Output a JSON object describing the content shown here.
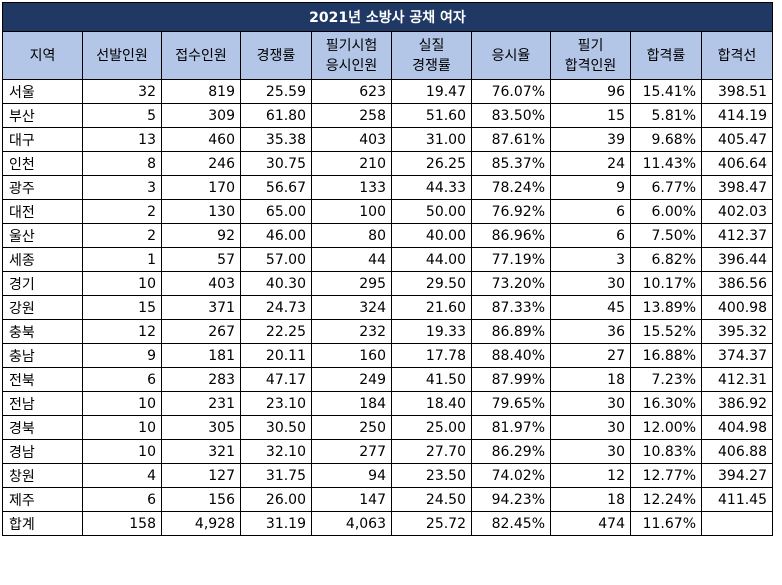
{
  "title": "2021년 소방사 공채 여자",
  "headers": [
    [
      "지역"
    ],
    [
      "선발인원"
    ],
    [
      "접수인원"
    ],
    [
      "경쟁률"
    ],
    [
      "필기시험",
      "응시인원"
    ],
    [
      "실질",
      "경쟁률"
    ],
    [
      "응시율"
    ],
    [
      "필기",
      "합격인원"
    ],
    [
      "합격률"
    ],
    [
      "합격선"
    ]
  ],
  "rows": [
    [
      "서울",
      "32",
      "819",
      "25.59",
      "623",
      "19.47",
      "76.07%",
      "96",
      "15.41%",
      "398.51"
    ],
    [
      "부산",
      "5",
      "309",
      "61.80",
      "258",
      "51.60",
      "83.50%",
      "15",
      "5.81%",
      "414.19"
    ],
    [
      "대구",
      "13",
      "460",
      "35.38",
      "403",
      "31.00",
      "87.61%",
      "39",
      "9.68%",
      "405.47"
    ],
    [
      "인천",
      "8",
      "246",
      "30.75",
      "210",
      "26.25",
      "85.37%",
      "24",
      "11.43%",
      "406.64"
    ],
    [
      "광주",
      "3",
      "170",
      "56.67",
      "133",
      "44.33",
      "78.24%",
      "9",
      "6.77%",
      "398.47"
    ],
    [
      "대전",
      "2",
      "130",
      "65.00",
      "100",
      "50.00",
      "76.92%",
      "6",
      "6.00%",
      "402.03"
    ],
    [
      "울산",
      "2",
      "92",
      "46.00",
      "80",
      "40.00",
      "86.96%",
      "6",
      "7.50%",
      "412.37"
    ],
    [
      "세종",
      "1",
      "57",
      "57.00",
      "44",
      "44.00",
      "77.19%",
      "3",
      "6.82%",
      "396.44"
    ],
    [
      "경기",
      "10",
      "403",
      "40.30",
      "295",
      "29.50",
      "73.20%",
      "30",
      "10.17%",
      "386.56"
    ],
    [
      "강원",
      "15",
      "371",
      "24.73",
      "324",
      "21.60",
      "87.33%",
      "45",
      "13.89%",
      "400.98"
    ],
    [
      "충북",
      "12",
      "267",
      "22.25",
      "232",
      "19.33",
      "86.89%",
      "36",
      "15.52%",
      "395.32"
    ],
    [
      "충남",
      "9",
      "181",
      "20.11",
      "160",
      "17.78",
      "88.40%",
      "27",
      "16.88%",
      "374.37"
    ],
    [
      "전북",
      "6",
      "283",
      "47.17",
      "249",
      "41.50",
      "87.99%",
      "18",
      "7.23%",
      "412.31"
    ],
    [
      "전남",
      "10",
      "231",
      "23.10",
      "184",
      "18.40",
      "79.65%",
      "30",
      "16.30%",
      "386.92"
    ],
    [
      "경북",
      "10",
      "305",
      "30.50",
      "250",
      "25.00",
      "81.97%",
      "30",
      "12.00%",
      "404.98"
    ],
    [
      "경남",
      "10",
      "321",
      "32.10",
      "277",
      "27.70",
      "86.29%",
      "30",
      "10.83%",
      "406.88"
    ],
    [
      "창원",
      "4",
      "127",
      "31.75",
      "94",
      "23.50",
      "74.02%",
      "12",
      "12.77%",
      "394.27"
    ],
    [
      "제주",
      "6",
      "156",
      "26.00",
      "147",
      "24.50",
      "94.23%",
      "18",
      "12.24%",
      "411.45"
    ],
    [
      "합계",
      "158",
      "4,928",
      "31.19",
      "4,063",
      "25.72",
      "82.45%",
      "474",
      "11.67%",
      ""
    ]
  ]
}
